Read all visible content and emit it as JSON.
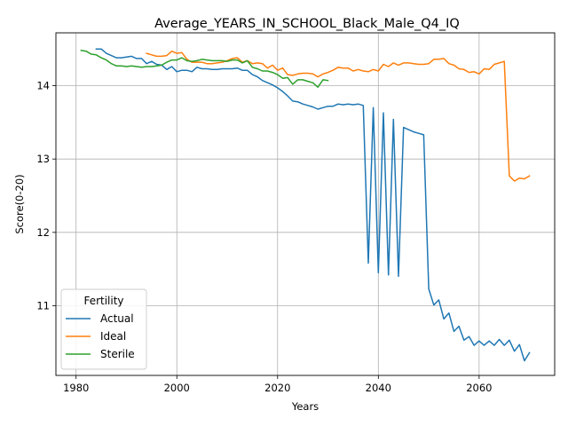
{
  "chart_data": {
    "type": "line",
    "title": "Average_YEARS_IN_SCHOOL_Black_Male_Q4_IQ",
    "xlabel": "Years",
    "ylabel": "Score(0-20)",
    "xlim": [
      1976,
      2075
    ],
    "ylim": [
      10.05,
      14.72
    ],
    "xticks": [
      1980,
      2000,
      2020,
      2040,
      2060
    ],
    "yticks": [
      11,
      12,
      13,
      14
    ],
    "grid": true,
    "legend": {
      "title": "Fertility",
      "position": "lower-left"
    },
    "series": [
      {
        "name": "Actual",
        "color": "#1f77b4",
        "x": [
          1984,
          1985,
          1986,
          1987,
          1988,
          1989,
          1990,
          1991,
          1992,
          1993,
          1994,
          1995,
          1996,
          1997,
          1998,
          1999,
          2000,
          2001,
          2002,
          2003,
          2004,
          2005,
          2006,
          2007,
          2008,
          2009,
          2010,
          2011,
          2012,
          2013,
          2014,
          2015,
          2016,
          2017,
          2018,
          2019,
          2020,
          2021,
          2022,
          2023,
          2024,
          2025,
          2026,
          2027,
          2028,
          2029,
          2030,
          2031,
          2032,
          2033,
          2034,
          2035,
          2036,
          2037,
          2038,
          2039,
          2040,
          2041,
          2042,
          2043,
          2044,
          2045,
          2046,
          2047,
          2048,
          2049,
          2050,
          2051,
          2052,
          2053,
          2054,
          2055,
          2056,
          2057,
          2058,
          2059,
          2060,
          2061,
          2062,
          2063,
          2064,
          2065,
          2066,
          2067,
          2068,
          2069,
          2070
        ],
        "y": [
          14.5,
          14.5,
          14.44,
          14.41,
          14.38,
          14.38,
          14.39,
          14.4,
          14.37,
          14.37,
          14.3,
          14.33,
          14.29,
          14.28,
          14.22,
          14.26,
          14.19,
          14.21,
          14.21,
          14.19,
          14.25,
          14.23,
          14.23,
          14.22,
          14.22,
          14.23,
          14.23,
          14.23,
          14.24,
          14.21,
          14.21,
          14.15,
          14.12,
          14.07,
          14.04,
          14.01,
          13.97,
          13.92,
          13.86,
          13.79,
          13.78,
          13.75,
          13.73,
          13.71,
          13.68,
          13.7,
          13.72,
          13.72,
          13.75,
          13.74,
          13.75,
          13.74,
          13.75,
          13.73,
          11.58,
          13.7,
          11.45,
          13.63,
          11.42,
          13.54,
          11.4,
          13.43,
          13.4,
          13.37,
          13.35,
          13.33,
          11.23,
          11.01,
          11.08,
          10.82,
          10.9,
          10.65,
          10.72,
          10.53,
          10.58,
          10.46,
          10.52,
          10.46,
          10.52,
          10.46,
          10.54,
          10.46,
          10.53,
          10.38,
          10.47,
          10.25,
          10.36
        ]
      },
      {
        "name": "Ideal",
        "color": "#ff7f0e",
        "x": [
          1994,
          1995,
          1996,
          1997,
          1998,
          1999,
          2000,
          2001,
          2002,
          2003,
          2004,
          2005,
          2006,
          2007,
          2008,
          2009,
          2010,
          2011,
          2012,
          2013,
          2014,
          2015,
          2016,
          2017,
          2018,
          2019,
          2020,
          2021,
          2022,
          2023,
          2024,
          2025,
          2026,
          2027,
          2028,
          2029,
          2030,
          2031,
          2032,
          2033,
          2034,
          2035,
          2036,
          2037,
          2038,
          2039,
          2040,
          2041,
          2042,
          2043,
          2044,
          2045,
          2046,
          2047,
          2048,
          2049,
          2050,
          2051,
          2052,
          2053,
          2054,
          2055,
          2056,
          2057,
          2058,
          2059,
          2060,
          2061,
          2062,
          2063,
          2064,
          2065,
          2066,
          2067,
          2068,
          2069,
          2070
        ],
        "y": [
          14.44,
          14.42,
          14.4,
          14.4,
          14.41,
          14.47,
          14.44,
          14.45,
          14.36,
          14.32,
          14.32,
          14.32,
          14.3,
          14.3,
          14.31,
          14.32,
          14.34,
          14.37,
          14.38,
          14.32,
          14.34,
          14.3,
          14.31,
          14.3,
          14.24,
          14.28,
          14.21,
          14.24,
          14.15,
          14.14,
          14.16,
          14.17,
          14.17,
          14.16,
          14.12,
          14.16,
          14.18,
          14.21,
          14.25,
          14.24,
          14.24,
          14.2,
          14.22,
          14.2,
          14.19,
          14.22,
          14.2,
          14.29,
          14.26,
          14.31,
          14.28,
          14.31,
          14.31,
          14.3,
          14.29,
          14.29,
          14.3,
          14.36,
          14.36,
          14.37,
          14.3,
          14.28,
          14.23,
          14.22,
          14.18,
          14.19,
          14.16,
          14.23,
          14.22,
          14.29,
          14.31,
          14.33,
          12.77,
          12.7,
          12.74,
          12.73,
          12.77
        ]
      },
      {
        "name": "Sterile",
        "color": "#2ca02c",
        "x": [
          1981,
          1982,
          1983,
          1984,
          1985,
          1986,
          1987,
          1988,
          1989,
          1990,
          1991,
          1992,
          1993,
          1994,
          1995,
          1996,
          1997,
          1998,
          1999,
          2000,
          2001,
          2002,
          2003,
          2004,
          2005,
          2006,
          2007,
          2008,
          2009,
          2010,
          2011,
          2012,
          2013,
          2014,
          2015,
          2016,
          2017,
          2018,
          2019,
          2020,
          2021,
          2022,
          2023,
          2024,
          2025,
          2026,
          2027,
          2028,
          2029,
          2030
        ],
        "y": [
          14.48,
          14.47,
          14.43,
          14.42,
          14.38,
          14.35,
          14.3,
          14.27,
          14.27,
          14.26,
          14.27,
          14.26,
          14.25,
          14.26,
          14.26,
          14.27,
          14.28,
          14.32,
          14.35,
          14.35,
          14.38,
          14.34,
          14.33,
          14.34,
          14.36,
          14.35,
          14.34,
          14.34,
          14.34,
          14.33,
          14.35,
          14.35,
          14.31,
          14.34,
          14.25,
          14.23,
          14.2,
          14.2,
          14.18,
          14.15,
          14.1,
          14.11,
          14.02,
          14.08,
          14.08,
          14.06,
          14.04,
          13.98,
          14.08,
          14.07
        ]
      }
    ]
  }
}
